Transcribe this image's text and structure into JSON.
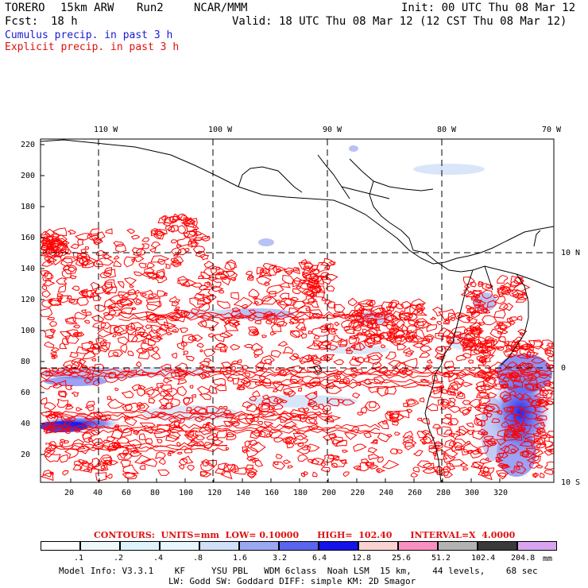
{
  "header": {
    "model": "TORERO",
    "resolution": "15km ARW",
    "run": "Run2",
    "org": "NCAR/MMM",
    "init": "Init: 00 UTC Thu 08 Mar 12",
    "fcst_label": "Fcst:",
    "fcst_value": "18 h",
    "valid": "Valid: 18 UTC Thu 08 Mar 12 (12 CST Thu 08 Mar 12)",
    "line_cumulus": "Cumulus precip. in past 3 h",
    "line_explicit": "Explicit precip. in past 3 h"
  },
  "map": {
    "top_lon_labels": [
      "110 W",
      "100 W",
      "90 W",
      "80 W",
      "70 W"
    ],
    "right_lat_labels": [
      "10 N",
      "0",
      "10 S"
    ],
    "left_y_ticks": [
      "220",
      "200",
      "180",
      "160",
      "140",
      "120",
      "100",
      "80",
      "60",
      "40",
      "20"
    ],
    "bottom_x_ticks": [
      "20",
      "40",
      "60",
      "80",
      "100",
      "120",
      "140",
      "160",
      "180",
      "200",
      "220",
      "240",
      "260",
      "280",
      "300",
      "320"
    ],
    "colors": {
      "cumulus": "#2a3cf0",
      "explicit": "#ff0000",
      "coast": "#000000"
    }
  },
  "legend": {
    "title": "CONTOURS:  UNITS=mm  LOW= 0.10000      HIGH=  102.40      INTERVAL=X  4.0000",
    "labels": [
      ".1",
      ".2",
      ".4",
      ".8",
      "1.6",
      "3.2",
      "6.4",
      "12.8",
      "25.6",
      "51.2",
      "102.4",
      "204.8"
    ],
    "units": "mm",
    "colors": [
      "#ffffff",
      "#eef8fb",
      "#dff3fb",
      "#e7f7fb",
      "#cfe0f7",
      "#9aa8f0",
      "#5a64ec",
      "#1414e8",
      "#fbd2d2",
      "#f890c0",
      "#b3b3b3",
      "#3a3a3a",
      "#d8a4f0"
    ]
  },
  "footer": {
    "line1": "Model Info: V3.3.1    KF     YSU PBL   WDM 6class  Noah LSM  15 km,    44 levels,    68 sec",
    "line2": "LW: Godd SW: Goddard DIFF: simple KM: 2D Smagor"
  }
}
